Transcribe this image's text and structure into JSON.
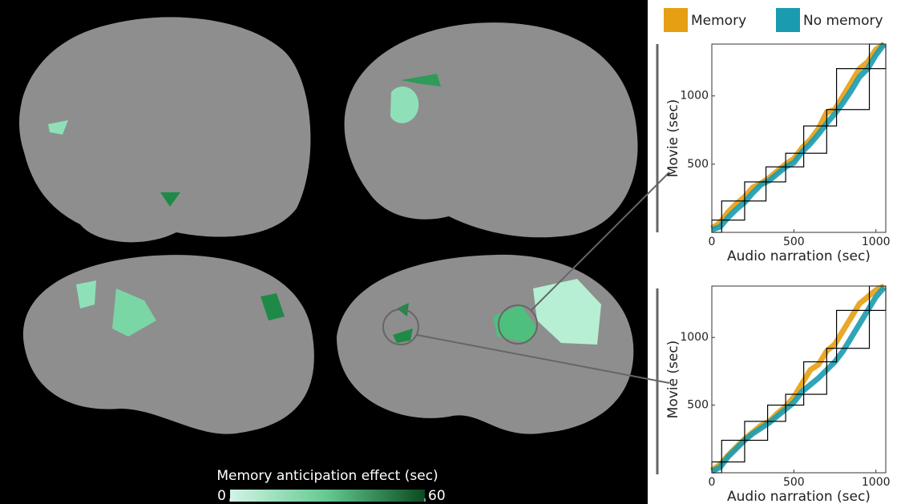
{
  "legend": {
    "items": [
      {
        "name": "Memory",
        "color": "#e69f13"
      },
      {
        "name": "No memory",
        "color": "#1a9bb0"
      }
    ]
  },
  "chart_data": [
    {
      "type": "colorbar",
      "title": "Memory anticipation effect (sec)",
      "lim": [
        0,
        60
      ],
      "ticks": [
        0,
        60
      ],
      "colors": [
        "#d2f4e6",
        "#63c98f",
        "#0c4a1f"
      ]
    },
    {
      "type": "line",
      "xlabel": "Audio narration (sec)",
      "ylabel": "Movie (sec)",
      "x": [
        0,
        50,
        100,
        150,
        200,
        250,
        300,
        350,
        400,
        450,
        500,
        550,
        600,
        650,
        700,
        750,
        800,
        850,
        900,
        950,
        1000,
        1050
      ],
      "series": [
        {
          "name": "Memory",
          "color": "#e69f13",
          "values": [
            30,
            70,
            150,
            210,
            260,
            330,
            360,
            400,
            450,
            500,
            540,
            620,
            680,
            760,
            880,
            900,
            1000,
            1100,
            1200,
            1250,
            1340,
            1380
          ]
        },
        {
          "name": "No memory",
          "color": "#1a9bb0",
          "values": [
            20,
            40,
            110,
            170,
            220,
            290,
            350,
            380,
            430,
            480,
            510,
            590,
            650,
            720,
            800,
            870,
            950,
            1040,
            1140,
            1200,
            1300,
            1380
          ]
        }
      ],
      "boxes": [
        [
          0,
          60,
          0,
          90
        ],
        [
          60,
          200,
          90,
          230
        ],
        [
          200,
          330,
          230,
          370
        ],
        [
          330,
          450,
          370,
          480
        ],
        [
          450,
          560,
          480,
          580
        ],
        [
          560,
          700,
          580,
          780
        ],
        [
          700,
          760,
          780,
          900
        ],
        [
          760,
          960,
          900,
          1200
        ],
        [
          960,
          1060,
          1200,
          1380
        ]
      ],
      "xlim": [
        0,
        1060
      ],
      "ylim": [
        0,
        1380
      ],
      "xticks": [
        0,
        500,
        1000
      ],
      "yticks": [
        500,
        1000
      ]
    },
    {
      "type": "line",
      "xlabel": "Audio narration (sec)",
      "ylabel": "Movie (sec)",
      "x": [
        0,
        50,
        100,
        150,
        200,
        250,
        300,
        350,
        400,
        450,
        500,
        550,
        600,
        650,
        700,
        750,
        800,
        850,
        900,
        950,
        1000,
        1050
      ],
      "series": [
        {
          "color": "#e69f13",
          "values": [
            20,
            60,
            130,
            190,
            250,
            300,
            350,
            380,
            440,
            490,
            560,
            660,
            760,
            800,
            900,
            950,
            1050,
            1150,
            1250,
            1300,
            1350,
            1380
          ]
        },
        {
          "color": "#1a9bb0",
          "values": [
            10,
            40,
            120,
            180,
            240,
            290,
            330,
            370,
            420,
            470,
            520,
            600,
            650,
            700,
            760,
            820,
            900,
            1000,
            1100,
            1200,
            1300,
            1370
          ]
        }
      ],
      "boxes": [
        [
          0,
          60,
          0,
          80
        ],
        [
          60,
          200,
          80,
          240
        ],
        [
          200,
          340,
          240,
          380
        ],
        [
          340,
          450,
          380,
          500
        ],
        [
          450,
          560,
          500,
          580
        ],
        [
          560,
          700,
          580,
          820
        ],
        [
          700,
          760,
          820,
          920
        ],
        [
          760,
          960,
          920,
          1200
        ],
        [
          960,
          1060,
          1200,
          1380
        ]
      ],
      "xlim": [
        0,
        1060
      ],
      "ylim": [
        0,
        1380
      ],
      "xticks": [
        0,
        500,
        1000
      ],
      "yticks": [
        500,
        1000
      ]
    }
  ]
}
